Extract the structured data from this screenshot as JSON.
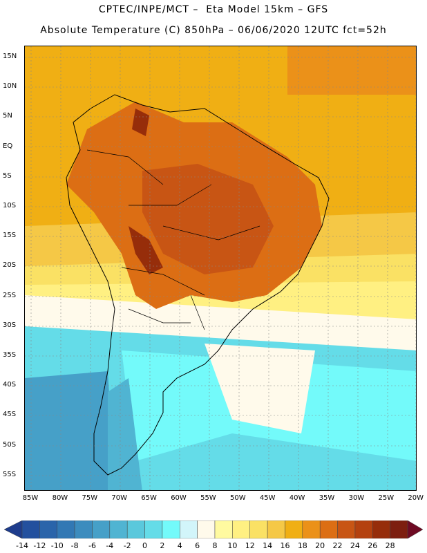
{
  "header": {
    "line1": "CPTEC/INPE/MCT –  Eta Model 15km – GFS",
    "line2": "Absolute Temperature (C) 850hPa – 06/06/2020 12UTC fct=52h"
  },
  "map": {
    "lat_labels": [
      "15N",
      "10N",
      "5N",
      "EQ",
      "5S",
      "10S",
      "15S",
      "20S",
      "25S",
      "30S",
      "35S",
      "40S",
      "45S",
      "50S",
      "55S"
    ],
    "lon_labels": [
      "85W",
      "80W",
      "75W",
      "70W",
      "65W",
      "60W",
      "55W",
      "50W",
      "45W",
      "40W",
      "35W",
      "30W",
      "25W",
      "20W"
    ]
  },
  "colorbar": {
    "labels": [
      "-14",
      "-12",
      "-10",
      "-8",
      "-6",
      "-4",
      "-2",
      "0",
      "2",
      "4",
      "6",
      "8",
      "10",
      "12",
      "14",
      "16",
      "18",
      "20",
      "22",
      "24",
      "26",
      "28"
    ],
    "colors": [
      "#1e3c8c",
      "#23509e",
      "#2a64aa",
      "#3278b4",
      "#3c8cbe",
      "#46a0c8",
      "#50b4d2",
      "#5ac8dc",
      "#64dce8",
      "#73fafa",
      "#d2f5fa",
      "#fffaeb",
      "#fffaa0",
      "#fff082",
      "#fae164",
      "#f5c846",
      "#f0af14",
      "#eb9119",
      "#dc6e14",
      "#c85514",
      "#b4410f",
      "#962d0a",
      "#7d1e0f",
      "#6e0a23"
    ]
  }
}
